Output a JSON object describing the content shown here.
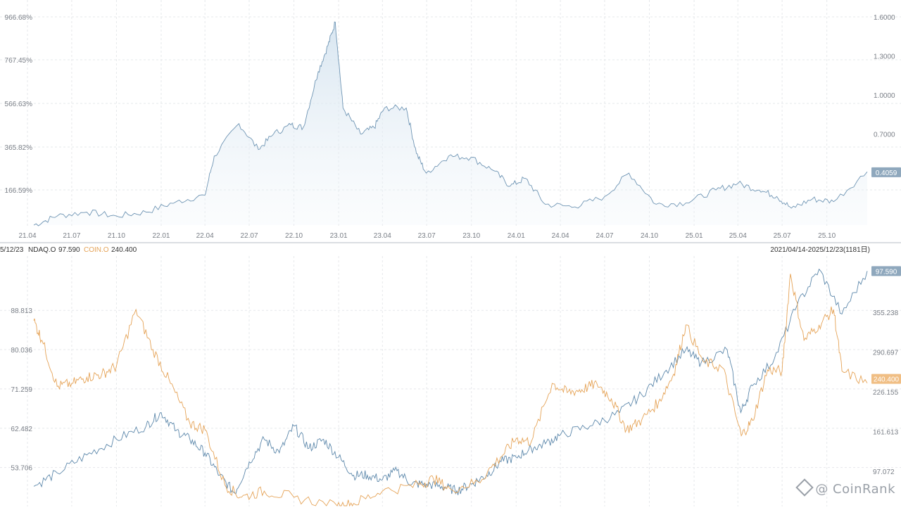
{
  "colors": {
    "ratio": "#6f95b4",
    "ndaq": "#5d88ab",
    "coin": "#e5a357"
  },
  "header": {
    "left_date": "5/12/23",
    "ndaq_label": "NDAQ.O",
    "ndaq_value": "97.590",
    "coin_label": "COIN.O",
    "coin_value": "240.400",
    "range": "2021/04/14-2025/12/23(1181日)"
  },
  "watermark": {
    "text": "@ CoinRank",
    "icon": "diamond-logo-icon"
  },
  "chart_data": [
    {
      "type": "area",
      "name": "top-ratio-chart",
      "x_start": "2021-04-14",
      "x_end": "2025-12-23",
      "x_ticks": [
        "21.04",
        "21.07",
        "21.10",
        "22.01",
        "22.04",
        "22.07",
        "22.10",
        "23.01",
        "23.04",
        "23.07",
        "23.10",
        "24.01",
        "24.04",
        "24.07",
        "24.10",
        "25.01",
        "25.04",
        "25.07",
        "25.10"
      ],
      "left_ticks": [
        "166.59%",
        "365.82%",
        "566.63%",
        "767.45%",
        "966.68%"
      ],
      "right_ticks": [
        "0.7000",
        "1.0000",
        "1.3000",
        "1.6000"
      ],
      "last_value": "0.4059",
      "ylim_right": [
        0.0,
        1.6
      ],
      "x": [
        "2021-04-14",
        "2021-06-01",
        "2021-08-01",
        "2021-10-01",
        "2021-12-01",
        "2022-02-01",
        "2022-04-01",
        "2022-04-20",
        "2022-06-10",
        "2022-07-20",
        "2022-08-20",
        "2022-09-25",
        "2022-10-20",
        "2022-11-20",
        "2022-12-10",
        "2022-12-25",
        "2023-01-10",
        "2023-02-15",
        "2023-03-15",
        "2023-04-05",
        "2023-05-20",
        "2023-06-10",
        "2023-06-30",
        "2023-08-15",
        "2023-09-30",
        "2023-11-15",
        "2023-12-20",
        "2024-01-20",
        "2024-03-01",
        "2024-05-01",
        "2024-07-01",
        "2024-08-20",
        "2024-10-15",
        "2024-12-15",
        "2025-02-15",
        "2025-04-01",
        "2025-05-15",
        "2025-06-20",
        "2025-07-20",
        "2025-09-01",
        "2025-10-15",
        "2025-12-23"
      ],
      "values": [
        0.0,
        0.07,
        0.1,
        0.07,
        0.1,
        0.18,
        0.23,
        0.53,
        0.78,
        0.58,
        0.7,
        0.77,
        0.75,
        1.18,
        1.38,
        1.56,
        0.9,
        0.7,
        0.75,
        0.9,
        0.9,
        0.55,
        0.4,
        0.53,
        0.52,
        0.42,
        0.3,
        0.36,
        0.16,
        0.14,
        0.22,
        0.4,
        0.16,
        0.17,
        0.27,
        0.32,
        0.27,
        0.22,
        0.13,
        0.2,
        0.18,
        0.41
      ]
    },
    {
      "type": "line",
      "name": "bottom-price-chart",
      "x_start": "2021-04-14",
      "x_end": "2025-12-23",
      "left_ticks": [
        "53.706",
        "62.482",
        "71.259",
        "80.036",
        "88.813"
      ],
      "right_ticks": [
        "97.072",
        "161.613",
        "226.155",
        "290.697",
        "355.238"
      ],
      "ylim_left": [
        45.0,
        100.0
      ],
      "ylim_right": [
        40.0,
        440.0
      ],
      "series": [
        {
          "name": "NDAQ.O",
          "axis": "left",
          "last_value": "97.590",
          "x": [
            "2021-04-14",
            "2021-06-01",
            "2021-08-01",
            "2021-10-01",
            "2021-12-01",
            "2022-01-01",
            "2022-02-01",
            "2022-03-01",
            "2022-04-01",
            "2022-05-01",
            "2022-06-01",
            "2022-07-01",
            "2022-08-01",
            "2022-09-01",
            "2022-10-01",
            "2022-11-01",
            "2022-12-01",
            "2023-01-01",
            "2023-02-01",
            "2023-03-01",
            "2023-04-01",
            "2023-05-01",
            "2023-06-01",
            "2023-07-01",
            "2023-08-01",
            "2023-09-01",
            "2023-10-01",
            "2023-11-01",
            "2023-12-01",
            "2024-01-01",
            "2024-02-01",
            "2024-03-01",
            "2024-04-01",
            "2024-06-01",
            "2024-08-01",
            "2024-09-15",
            "2024-11-01",
            "2024-12-15",
            "2025-01-15",
            "2025-03-10",
            "2025-04-07",
            "2025-05-01",
            "2025-06-15",
            "2025-08-01",
            "2025-09-15",
            "2025-11-01",
            "2025-12-23"
          ],
          "values": [
            49.5,
            52.5,
            56.5,
            60.0,
            63.0,
            66.0,
            62.0,
            60.0,
            57.0,
            52.0,
            48.0,
            55.0,
            60.0,
            57.0,
            63.0,
            58.0,
            60.0,
            56.0,
            52.0,
            52.0,
            51.0,
            53.0,
            50.0,
            50.0,
            49.5,
            48.5,
            50.0,
            52.0,
            55.0,
            56.0,
            58.0,
            59.0,
            61.0,
            63.0,
            66.0,
            70.0,
            75.0,
            80.0,
            77.0,
            80.0,
            66.0,
            72.0,
            78.0,
            90.0,
            98.0,
            88.0,
            97.6
          ]
        },
        {
          "name": "COIN.O",
          "axis": "right",
          "last_value": "240.400",
          "x": [
            "2021-04-14",
            "2021-05-01",
            "2021-06-01",
            "2021-07-01",
            "2021-08-01",
            "2021-09-01",
            "2021-10-01",
            "2021-11-10",
            "2021-12-15",
            "2022-01-20",
            "2022-03-01",
            "2022-04-01",
            "2022-05-12",
            "2022-06-15",
            "2022-08-01",
            "2022-10-01",
            "2022-12-29",
            "2023-02-01",
            "2023-04-01",
            "2023-06-15",
            "2023-07-15",
            "2023-08-20",
            "2023-10-15",
            "2023-11-30",
            "2024-01-01",
            "2024-02-01",
            "2024-03-15",
            "2024-04-15",
            "2024-05-15",
            "2024-06-15",
            "2024-07-15",
            "2024-08-15",
            "2024-09-15",
            "2024-10-20",
            "2024-11-20",
            "2024-12-15",
            "2025-01-20",
            "2025-03-01",
            "2025-04-08",
            "2025-05-01",
            "2025-06-01",
            "2025-07-01",
            "2025-07-18",
            "2025-08-15",
            "2025-09-15",
            "2025-10-15",
            "2025-11-01",
            "2025-12-23"
          ],
          "values": [
            342.0,
            310.0,
            235.0,
            240.0,
            250.0,
            255.0,
            268.0,
            360.0,
            295.0,
            240.0,
            175.0,
            165.0,
            75.0,
            55.0,
            65.0,
            55.0,
            40.0,
            45.0,
            65.0,
            75.0,
            85.0,
            68.0,
            80.0,
            120.0,
            150.0,
            145.0,
            240.0,
            225.0,
            230.0,
            240.0,
            215.0,
            165.0,
            180.0,
            210.0,
            255.0,
            335.0,
            275.0,
            265.0,
            155.0,
            180.0,
            262.0,
            260.0,
            418.0,
            310.0,
            335.0,
            360.0,
            260.0,
            240.4
          ]
        }
      ]
    }
  ]
}
